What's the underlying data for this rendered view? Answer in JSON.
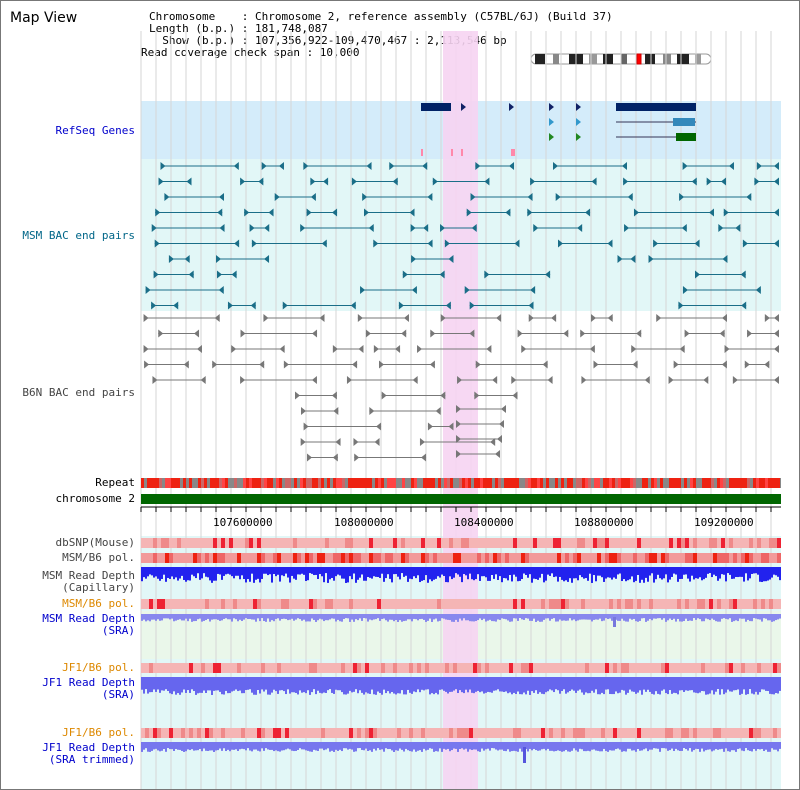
{
  "header": {
    "title": "Map View",
    "chromosome_line": "Chromosome    : Chromosome 2, reference assembly (C57BL/6J) (Build 37)",
    "length_line": "Length (b.p.) : 181,748,087",
    "show_line": "  Show (b.p.) : 107,356,922-109,470,467 : 2,113,546 bp",
    "coverage_line": "Read coverage check span : 10,000"
  },
  "tracks": {
    "refseq": "RefSeq Genes",
    "msm_bac": "MSM BAC end pairs",
    "b6n_bac": "B6N BAC end pairs",
    "repeat": "Repeat",
    "chromosome": "chromosome 2",
    "dbsnp": "dbSNP(Mouse)",
    "msm_pol1": "MSM/B6 pol.",
    "msm_depth_cap": "MSM Read Depth\n(Capillary)",
    "msm_pol2": "MSM/B6 pol.",
    "msm_depth_sra": "MSM Read Depth\n(SRA)",
    "jf1_pol1": "JF1/B6 pol.",
    "jf1_depth_sra": "JF1 Read Depth\n(SRA)",
    "jf1_pol2": "JF1/B6 pol.",
    "jf1_depth_trim": "JF1 Read Depth\n(SRA trimmed)"
  },
  "axis": {
    "ticks": [
      "107600000",
      "108000000",
      "108400000",
      "108800000",
      "109200000"
    ]
  },
  "colors": {
    "highlight": "#f6d4f2",
    "refseq_bg": "#d4ecfa",
    "msm_bg": "#e2f7f7",
    "chromosome": "#006600",
    "snp": "#f0a8a8",
    "depth": "#3333ff"
  }
}
